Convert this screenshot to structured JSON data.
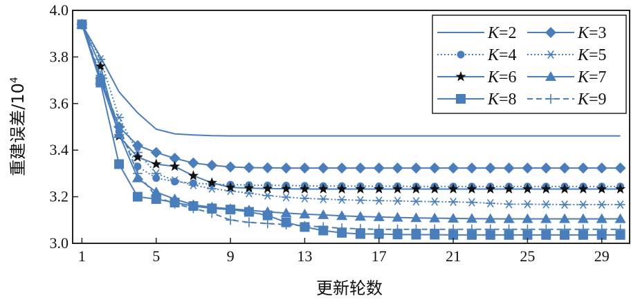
{
  "chart_data": {
    "type": "line",
    "xlabel": "更新轮数",
    "ylabel": "重建误差/10",
    "ylabel_sup": "4",
    "xlim": [
      0.5,
      30.5
    ],
    "ylim": [
      3.0,
      4.0
    ],
    "x_ticks": [
      1,
      5,
      9,
      13,
      17,
      21,
      25,
      29
    ],
    "x_tick_labels": [
      "1",
      "5",
      "9",
      "13",
      "17",
      "21",
      "25",
      "29"
    ],
    "y_ticks": [
      3.0,
      3.2,
      3.4,
      3.6,
      3.8,
      4.0
    ],
    "y_tick_labels": [
      "3.0",
      "3.2",
      "3.4",
      "3.6",
      "3.8",
      "4.0"
    ],
    "grid": false,
    "legend_position": "top-right",
    "color": "#4a7ebb",
    "x": [
      1,
      2,
      3,
      4,
      5,
      6,
      7,
      8,
      9,
      10,
      11,
      12,
      13,
      14,
      15,
      16,
      17,
      18,
      19,
      20,
      21,
      22,
      23,
      24,
      25,
      26,
      27,
      28,
      29,
      30
    ],
    "series": [
      {
        "name": "K=2",
        "marker": "none",
        "dash": "solid",
        "values": [
          3.94,
          3.8,
          3.65,
          3.56,
          3.49,
          3.47,
          3.465,
          3.462,
          3.461,
          3.461,
          3.461,
          3.461,
          3.461,
          3.461,
          3.461,
          3.461,
          3.461,
          3.461,
          3.461,
          3.461,
          3.461,
          3.461,
          3.461,
          3.461,
          3.461,
          3.461,
          3.461,
          3.461,
          3.461,
          3.461
        ]
      },
      {
        "name": "K=3",
        "marker": "diamond",
        "dash": "solid",
        "values": [
          3.94,
          3.71,
          3.5,
          3.42,
          3.39,
          3.365,
          3.345,
          3.335,
          3.328,
          3.325,
          3.324,
          3.323,
          3.323,
          3.323,
          3.323,
          3.323,
          3.323,
          3.323,
          3.323,
          3.323,
          3.323,
          3.323,
          3.323,
          3.323,
          3.323,
          3.323,
          3.323,
          3.323,
          3.323,
          3.323
        ]
      },
      {
        "name": "K=4",
        "marker": "circle",
        "dash": "dotted",
        "values": [
          3.94,
          3.7,
          3.48,
          3.33,
          3.28,
          3.265,
          3.258,
          3.254,
          3.252,
          3.25,
          3.249,
          3.248,
          3.247,
          3.246,
          3.246,
          3.245,
          3.245,
          3.245,
          3.244,
          3.244,
          3.244,
          3.244,
          3.244,
          3.244,
          3.244,
          3.244,
          3.244,
          3.244,
          3.244,
          3.244
        ]
      },
      {
        "name": "K=5",
        "marker": "asterisk",
        "dash": "dotted",
        "values": [
          3.94,
          3.79,
          3.54,
          3.39,
          3.3,
          3.27,
          3.25,
          3.235,
          3.225,
          3.215,
          3.205,
          3.198,
          3.193,
          3.19,
          3.187,
          3.185,
          3.183,
          3.182,
          3.18,
          3.179,
          3.178,
          3.176,
          3.172,
          3.168,
          3.168,
          3.167,
          3.166,
          3.166,
          3.166,
          3.166
        ]
      },
      {
        "name": "K=6",
        "marker": "star",
        "dash": "solid",
        "values": [
          3.94,
          3.76,
          3.46,
          3.37,
          3.34,
          3.33,
          3.29,
          3.26,
          3.24,
          3.237,
          3.235,
          3.234,
          3.233,
          3.233,
          3.233,
          3.233,
          3.233,
          3.233,
          3.233,
          3.233,
          3.233,
          3.233,
          3.233,
          3.233,
          3.233,
          3.233,
          3.233,
          3.233,
          3.233,
          3.233
        ]
      },
      {
        "name": "K=7",
        "marker": "triangle",
        "dash": "solid",
        "values": [
          3.94,
          3.7,
          3.47,
          3.28,
          3.22,
          3.19,
          3.165,
          3.155,
          3.148,
          3.142,
          3.135,
          3.13,
          3.125,
          3.122,
          3.118,
          3.115,
          3.113,
          3.111,
          3.109,
          3.108,
          3.107,
          3.106,
          3.105,
          3.105,
          3.105,
          3.105,
          3.105,
          3.105,
          3.105,
          3.105
        ]
      },
      {
        "name": "K=8",
        "marker": "square",
        "dash": "solid",
        "values": [
          3.94,
          3.69,
          3.34,
          3.2,
          3.19,
          3.175,
          3.16,
          3.15,
          3.145,
          3.135,
          3.12,
          3.09,
          3.07,
          3.055,
          3.045,
          3.04,
          3.04,
          3.038,
          3.037,
          3.037,
          3.036,
          3.036,
          3.036,
          3.036,
          3.036,
          3.036,
          3.036,
          3.036,
          3.036,
          3.036
        ]
      },
      {
        "name": "K=9",
        "marker": "plus",
        "dash": "dashed",
        "values": [
          3.94,
          3.72,
          3.5,
          3.3,
          3.2,
          3.17,
          3.15,
          3.13,
          3.1,
          3.09,
          3.085,
          3.08,
          3.075,
          3.07,
          3.065,
          3.062,
          3.06,
          3.06,
          3.06,
          3.06,
          3.06,
          3.06,
          3.06,
          3.06,
          3.06,
          3.06,
          3.06,
          3.06,
          3.06,
          3.06
        ]
      }
    ]
  }
}
